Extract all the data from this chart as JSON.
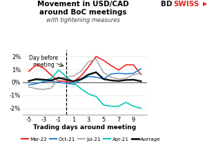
{
  "title1": "Movement in USD/CAD",
  "title2": "around BoC meetings",
  "subtitle": "with tightening measures",
  "xlabel": "Trading days around meeting",
  "annotation": "Day before\nmeeting",
  "x": [
    -5,
    -4,
    -3,
    -2,
    -1,
    1,
    2,
    3,
    4,
    5,
    6,
    7,
    8,
    9,
    10
  ],
  "mar22": [
    0.85,
    1.35,
    1.1,
    0.55,
    0.1,
    0.05,
    0.5,
    1.2,
    2.0,
    1.7,
    1.3,
    0.95,
    1.35,
    1.35,
    0.6
  ],
  "oct21": [
    -0.2,
    -0.1,
    0.05,
    0.1,
    0.0,
    -0.15,
    0.2,
    0.45,
    0.4,
    0.25,
    0.65,
    0.7,
    0.65,
    0.7,
    1.05
  ],
  "jul21": [
    -0.35,
    -0.5,
    -0.55,
    -0.45,
    0.3,
    0.5,
    0.85,
    1.6,
    1.8,
    0.75,
    0.4,
    0.25,
    0.3,
    0.6,
    0.7
  ],
  "apr21": [
    0.1,
    0.2,
    0.15,
    0.3,
    0.95,
    -0.05,
    -0.5,
    -0.9,
    -1.1,
    -1.75,
    -1.85,
    -1.85,
    -1.55,
    -1.85,
    -2.0
  ],
  "average": [
    0.1,
    0.25,
    0.2,
    0.15,
    0.35,
    0.08,
    0.25,
    0.6,
    0.78,
    0.25,
    0.15,
    0.1,
    0.18,
    0.2,
    0.08
  ],
  "colors": {
    "mar22": "#e8201e",
    "oct21": "#1f7fd4",
    "jul21": "#aaaaaa",
    "apr21": "#00c8b4",
    "average": "#111111"
  },
  "ylim": [
    -2.5,
    2.5
  ],
  "yticks": [
    -2,
    -1,
    0,
    1,
    2
  ],
  "ytick_labels": [
    "-2%",
    "-1%",
    "0%",
    "1%",
    "2%"
  ],
  "xticks": [
    -5,
    -4,
    -3,
    -2,
    -1,
    1,
    2,
    3,
    4,
    5,
    6,
    7,
    8,
    9,
    10
  ],
  "xtick_labels": [
    "-5",
    "",
    "-3",
    "",
    "-1",
    "1",
    "",
    "3",
    "",
    "5",
    "",
    "7",
    "",
    "9",
    ""
  ],
  "vline_x": 0,
  "bdswiss_color_flag": "#e0201e"
}
